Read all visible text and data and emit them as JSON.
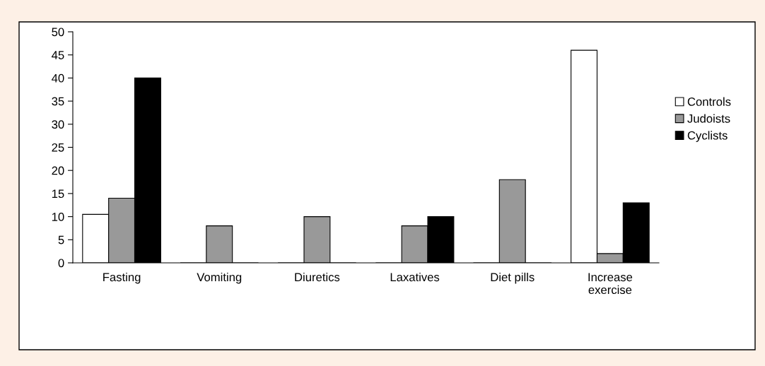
{
  "chart_data": {
    "type": "bar",
    "categories": [
      "Fasting",
      "Vomiting",
      "Diuretics",
      "Laxatives",
      "Diet pills",
      "Increase\nexercise"
    ],
    "series": [
      {
        "name": "Controls",
        "color": "#ffffff",
        "values": [
          10.5,
          0,
          0,
          0,
          0,
          46
        ]
      },
      {
        "name": "Judoists",
        "color": "#999999",
        "values": [
          14,
          8,
          10,
          8,
          18,
          2
        ]
      },
      {
        "name": "Cyclists",
        "color": "#000000",
        "values": [
          40,
          0,
          0,
          10,
          0,
          13
        ]
      }
    ],
    "ylim": [
      0,
      50
    ],
    "yticks": [
      0,
      5,
      10,
      15,
      20,
      25,
      30,
      35,
      40,
      45,
      50
    ],
    "grid": false,
    "legend": "right"
  }
}
